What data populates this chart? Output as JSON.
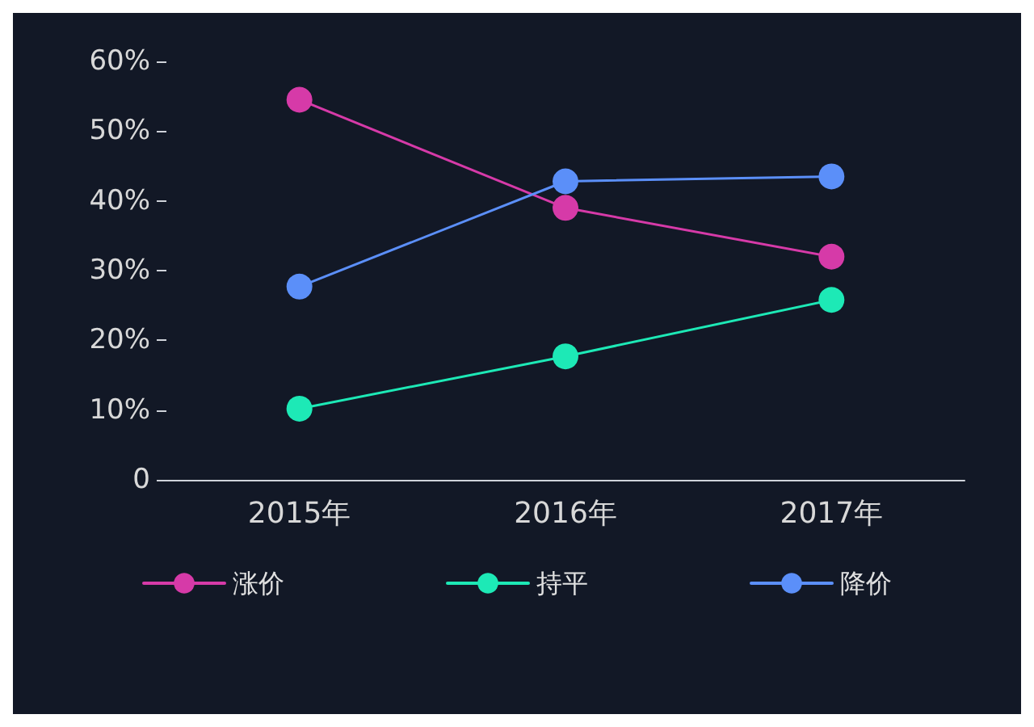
{
  "chart_data": {
    "type": "line",
    "categories": [
      "2015年",
      "2016年",
      "2017年"
    ],
    "series": [
      {
        "name": "涨价",
        "color": "#d63aa8",
        "values": [
          54.5,
          39,
          32
        ]
      },
      {
        "name": "持平",
        "color": "#1de9b6",
        "values": [
          10.2,
          17.7,
          25.8
        ]
      },
      {
        "name": "降价",
        "color": "#5b8ff9",
        "values": [
          27.7,
          42.8,
          43.5
        ]
      }
    ],
    "ylim": [
      0,
      60
    ],
    "yticks": [
      {
        "value": 0,
        "label": "0"
      },
      {
        "value": 10,
        "label": "10%"
      },
      {
        "value": 20,
        "label": "20%"
      },
      {
        "value": 30,
        "label": "30%"
      },
      {
        "value": 40,
        "label": "40%"
      },
      {
        "value": 50,
        "label": "50%"
      },
      {
        "value": 60,
        "label": "60%"
      }
    ],
    "grid": false,
    "legend": "bottom",
    "marker": "circle",
    "line_style": "solid"
  }
}
